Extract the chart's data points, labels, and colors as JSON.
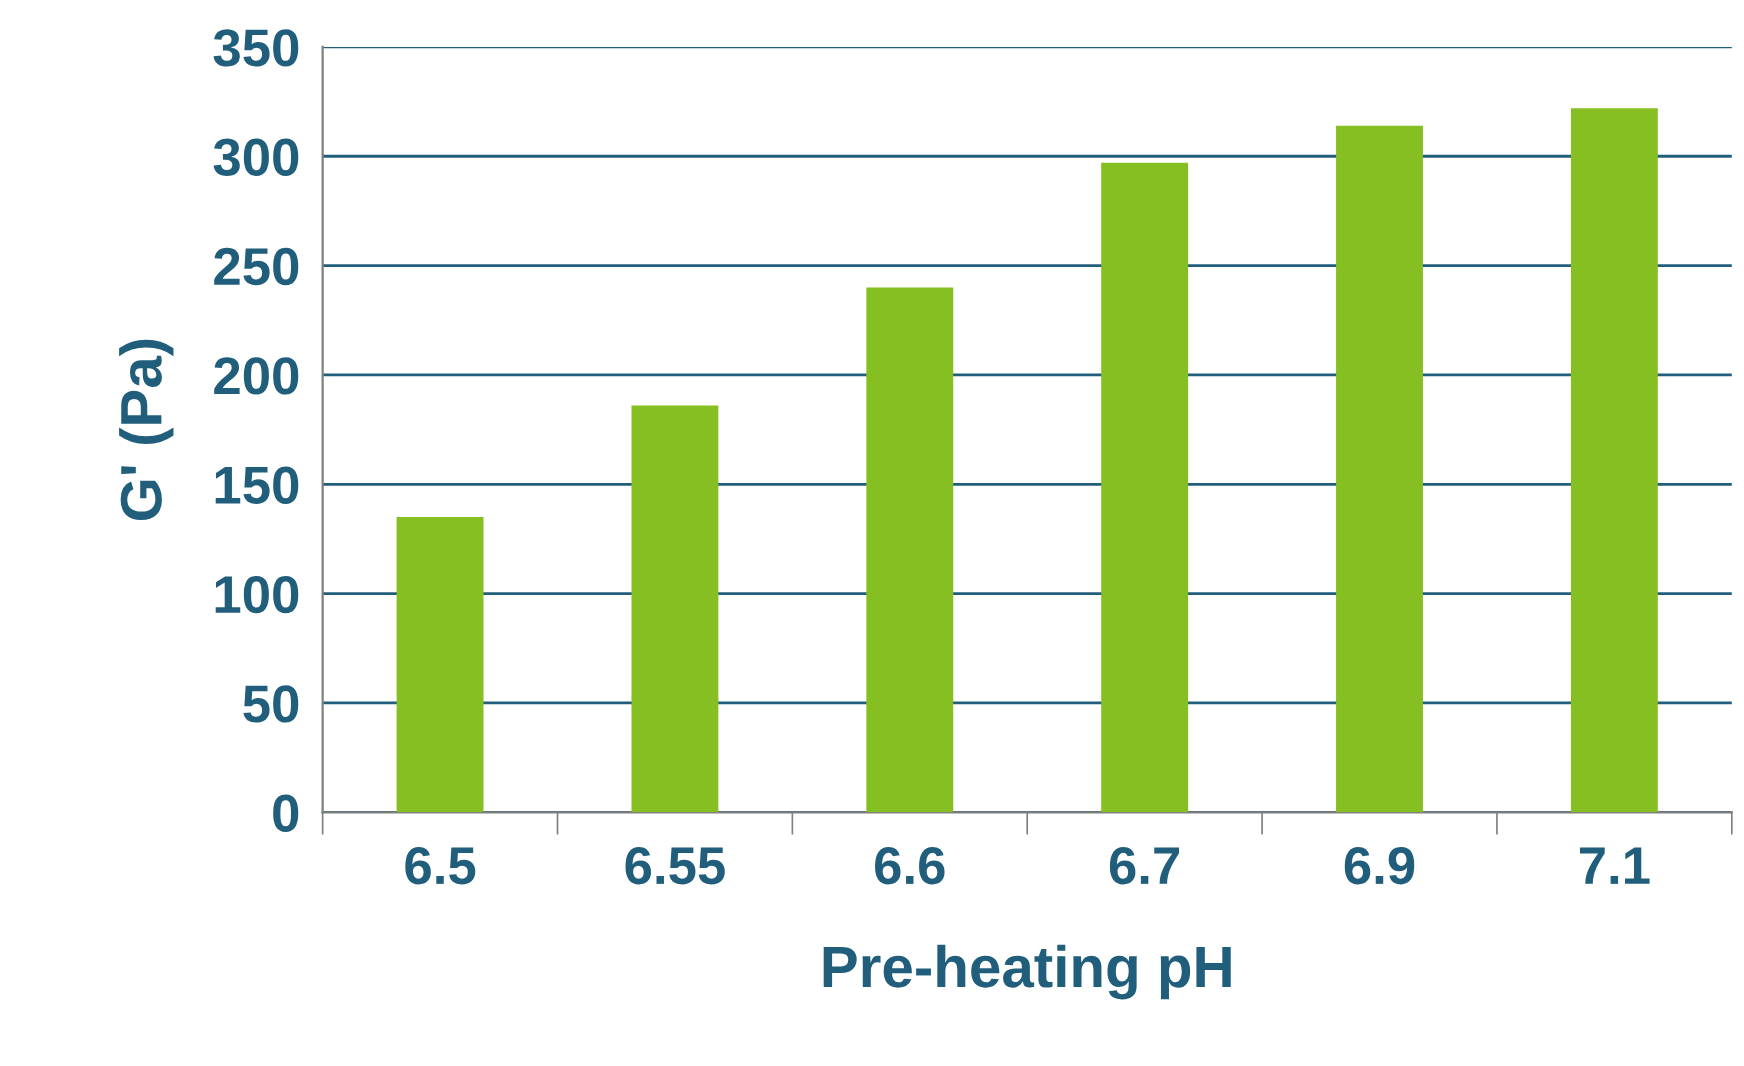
{
  "chart_data": {
    "type": "bar",
    "xlabel": "Pre-heating pH",
    "ylabel": "G' (Pa)",
    "categories": [
      "6.5",
      "6.55",
      "6.6",
      "6.7",
      "6.9",
      "7.1"
    ],
    "values": [
      135,
      186,
      240,
      297,
      314,
      322
    ],
    "color": "#86bf21",
    "ylim": [
      0,
      350
    ],
    "yticks": [
      0,
      50,
      100,
      150,
      200,
      250,
      300,
      350
    ],
    "grid": "y"
  }
}
